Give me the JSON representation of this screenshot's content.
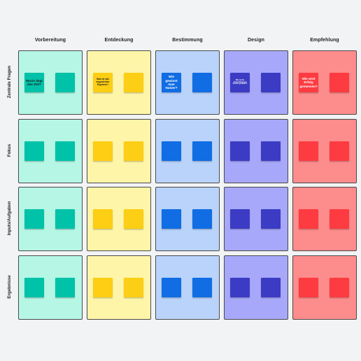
{
  "columns": [
    {
      "label": "Vorbereitung",
      "bg": "#b5f6e4",
      "note": "#00c2a8",
      "text_color": "#1e1e1e"
    },
    {
      "label": "Entdeckung",
      "bg": "#fff5a8",
      "note": "#fcce14",
      "text_color": "#1e1e1e"
    },
    {
      "label": "Bestimmung",
      "bg": "#b9d3fb",
      "note": "#106de3",
      "text_color": "#ffffff"
    },
    {
      "label": "Design",
      "bg": "#a8a8fb",
      "note": "#3b3cc3",
      "text_color": "#ffffff"
    },
    {
      "label": "Empfehlung",
      "bg": "#fd8c8c",
      "note": "#fd3b41",
      "text_color": "#ffffff"
    }
  ],
  "rows": [
    {
      "label": "Zentrale Fragen"
    },
    {
      "label": "Fokus"
    },
    {
      "label": "Inputs/Aufgaben"
    },
    {
      "label": "Ergebnisse"
    }
  ],
  "questions": [
    "Worin liegt das Ziel?",
    "Was ist das angestrebte Ergebnis?",
    "Wie gewinnt man Nutzer?",
    "Wie ist die Anwendung am besten gestaltet?",
    "Wie wird Erfolg gemessen?"
  ]
}
